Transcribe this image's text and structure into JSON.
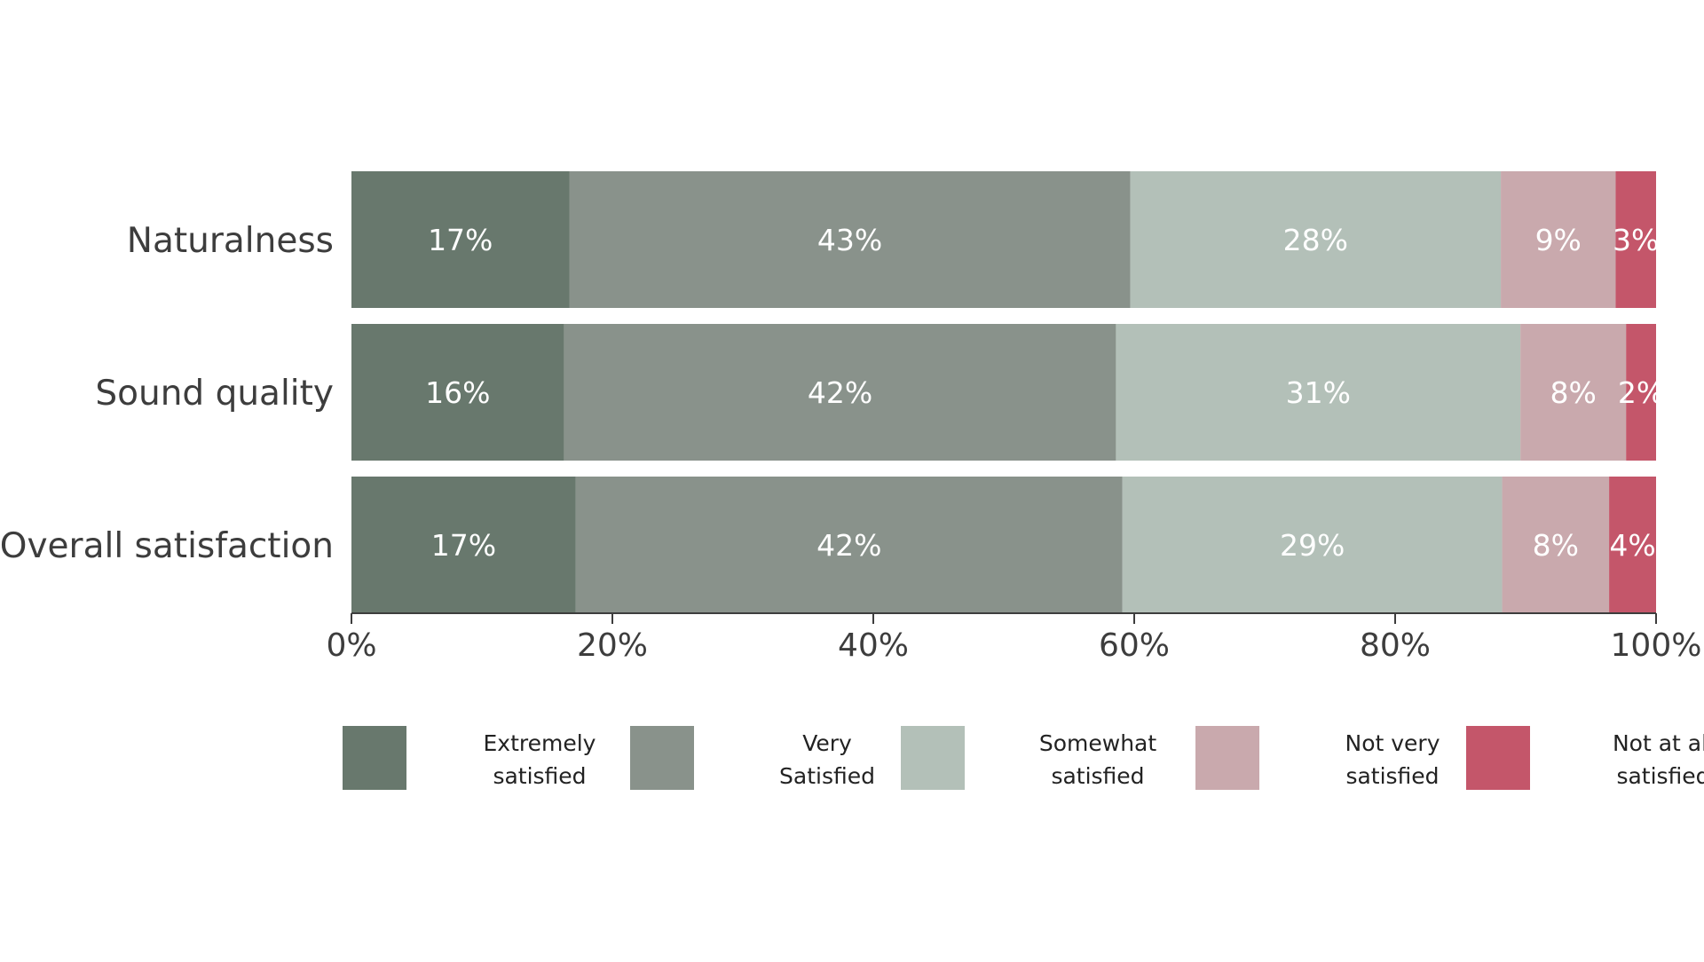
{
  "chart_data": {
    "type": "bar",
    "orientation": "horizontal",
    "stacked": true,
    "title": "",
    "xlabel": "",
    "ylabel": "",
    "xlim": [
      0,
      100
    ],
    "grid": false,
    "legend_position": "bottom",
    "x_ticks": [
      "0%",
      "20%",
      "40%",
      "60%",
      "80%",
      "100%"
    ],
    "categories": [
      "Naturalness",
      "Sound quality",
      "Overall satisfaction"
    ],
    "series": [
      {
        "name": "Extremely satisfied",
        "legend_lines": [
          "Extremely",
          "satisfied"
        ],
        "color": "#68786d",
        "values": [
          16.7,
          16.3,
          17.2
        ],
        "labels": [
          "17%",
          "16%",
          "17%"
        ]
      },
      {
        "name": "Very Satisfied",
        "legend_lines": [
          "Very",
          "Satisfied"
        ],
        "color": "#89928b",
        "values": [
          43.0,
          42.3,
          41.9
        ],
        "labels": [
          "43%",
          "42%",
          "42%"
        ]
      },
      {
        "name": "Somewhat satisfied",
        "legend_lines": [
          "Somewhat",
          "satisfied"
        ],
        "color": "#b3c0b8",
        "values": [
          28.4,
          31.0,
          29.1
        ],
        "labels": [
          "28%",
          "31%",
          "29%"
        ]
      },
      {
        "name": "Not very satisfied",
        "legend_lines": [
          "Not very",
          "satisfied"
        ],
        "color": "#c9a9ad",
        "values": [
          8.8,
          8.1,
          8.2
        ],
        "labels": [
          "9%",
          "8%",
          "8%"
        ]
      },
      {
        "name": "Not at all satisfied",
        "legend_lines": [
          "Not at all",
          "satisfied"
        ],
        "color": "#c4566a",
        "values": [
          3.1,
          2.3,
          3.6
        ],
        "labels": [
          "3%",
          "2%",
          "4%"
        ]
      }
    ]
  }
}
